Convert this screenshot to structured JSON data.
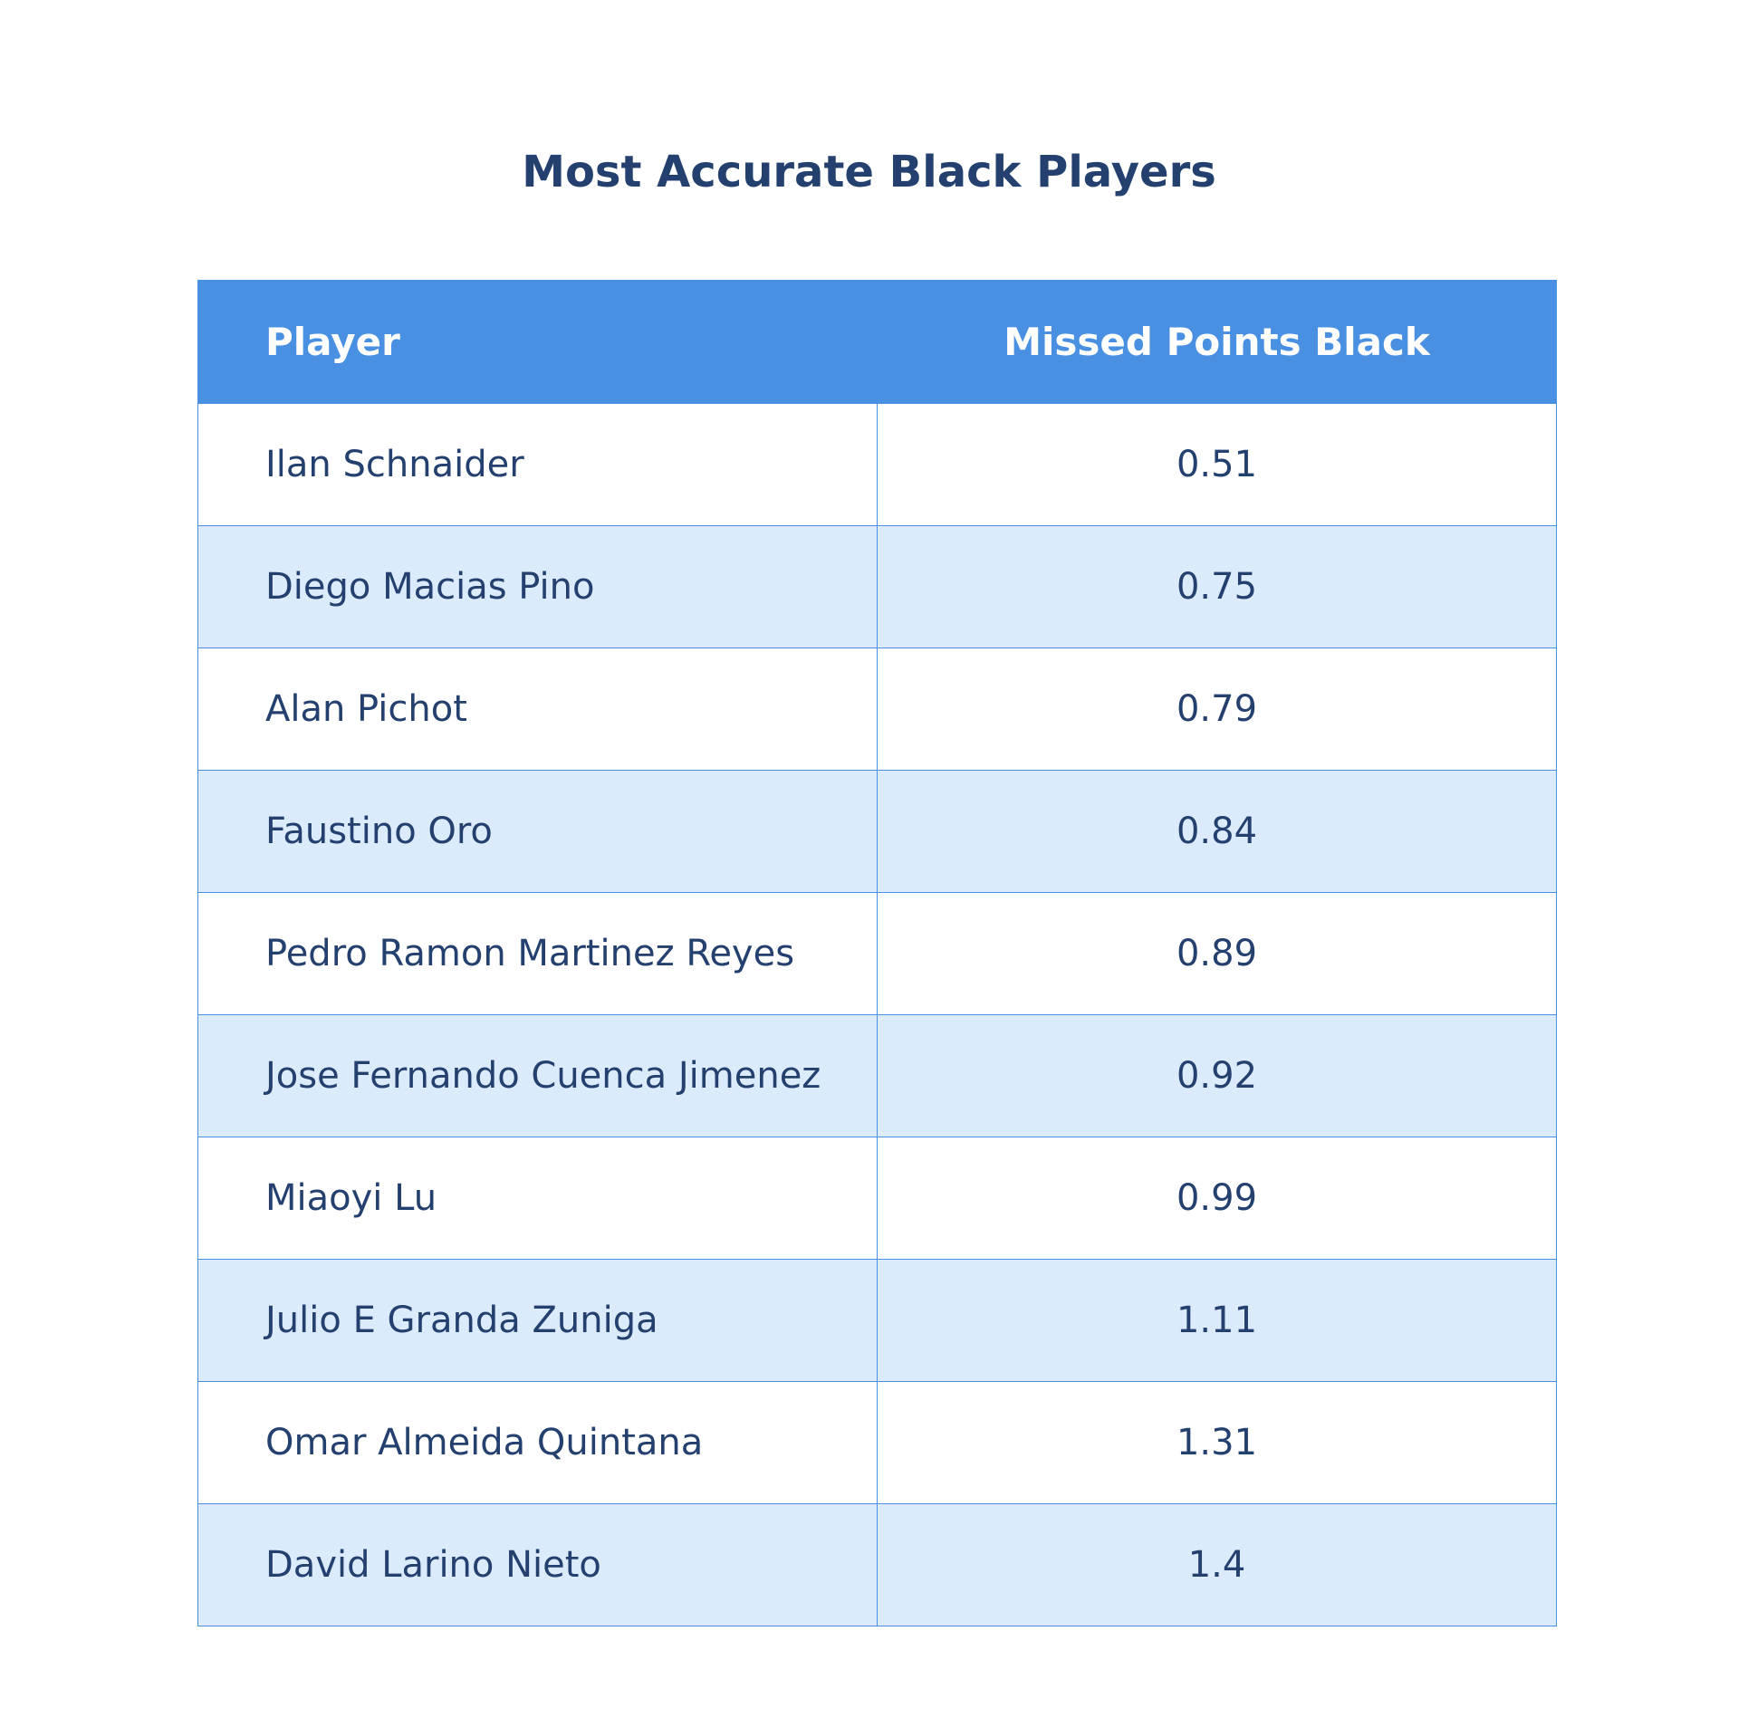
{
  "chart_data": {
    "type": "table",
    "title": "Most Accurate Black Players",
    "columns": [
      "Player",
      "Missed Points Black"
    ],
    "rows": [
      {
        "player": "Ilan Schnaider",
        "value": "0.51"
      },
      {
        "player": "Diego Macias Pino",
        "value": "0.75"
      },
      {
        "player": "Alan Pichot",
        "value": "0.79"
      },
      {
        "player": "Faustino Oro",
        "value": "0.84"
      },
      {
        "player": "Pedro Ramon Martinez Reyes",
        "value": "0.89"
      },
      {
        "player": "Jose Fernando Cuenca Jimenez",
        "value": "0.92"
      },
      {
        "player": "Miaoyi Lu",
        "value": "0.99"
      },
      {
        "player": "Julio E Granda Zuniga",
        "value": "1.11"
      },
      {
        "player": "Omar Almeida Quintana",
        "value": "1.31"
      },
      {
        "player": "David Larino Nieto",
        "value": "1.4"
      }
    ],
    "colors": {
      "header_bg": "#4a90e2",
      "header_text": "#ffffff",
      "row_alt_bg": "#dcebfc",
      "row_bg": "#ffffff",
      "text": "#23406e",
      "border": "#4a90e2"
    }
  }
}
